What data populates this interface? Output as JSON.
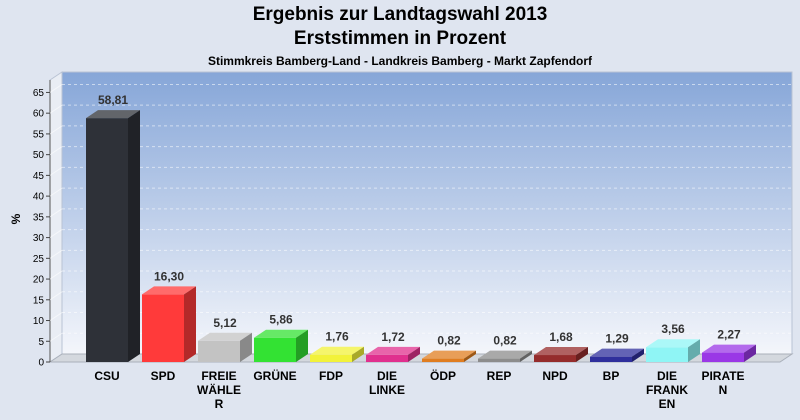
{
  "chart_data": {
    "type": "bar",
    "title": "Ergebnis zur Landtagswahl 2013",
    "subtitle": "Erststimmen in Prozent",
    "subsubtitle": "Stimmkreis Bamberg-Land - Landkreis Bamberg - Markt Zapfendorf",
    "ylabel": "%",
    "xlabel": "",
    "ylim": [
      0,
      68
    ],
    "yticks": [
      "0",
      "5",
      "10",
      "15",
      "20",
      "25",
      "30",
      "35",
      "40",
      "45",
      "50",
      "55",
      "60",
      "65"
    ],
    "grid": true,
    "categories": [
      {
        "lines": [
          "CSU"
        ]
      },
      {
        "lines": [
          "SPD"
        ]
      },
      {
        "lines": [
          "FREIE",
          "WÄHLE",
          "R"
        ]
      },
      {
        "lines": [
          "GRÜNE"
        ]
      },
      {
        "lines": [
          "FDP"
        ]
      },
      {
        "lines": [
          "DIE",
          "LINKE"
        ]
      },
      {
        "lines": [
          "ÖDP"
        ]
      },
      {
        "lines": [
          "REP"
        ]
      },
      {
        "lines": [
          "NPD"
        ]
      },
      {
        "lines": [
          "BP"
        ]
      },
      {
        "lines": [
          "DIE",
          "FRANK",
          "EN"
        ]
      },
      {
        "lines": [
          "PIRATE",
          "N"
        ]
      }
    ],
    "values": [
      58.81,
      16.3,
      5.12,
      5.86,
      1.76,
      1.72,
      0.82,
      0.82,
      1.68,
      1.29,
      3.56,
      2.27
    ],
    "value_labels": [
      "58,81",
      "16,30",
      "5,12",
      "5,86",
      "1,76",
      "1,72",
      "0,82",
      "0,82",
      "1,68",
      "1,29",
      "3,56",
      "2,27"
    ],
    "colors": [
      "#2e3138",
      "#ff3a3a",
      "#c3c3c3",
      "#33e233",
      "#f2f23a",
      "#e0308e",
      "#e07d20",
      "#8c8c8c",
      "#952c2c",
      "#2f2f9c",
      "#8ff5f5",
      "#9a38e6"
    ]
  }
}
